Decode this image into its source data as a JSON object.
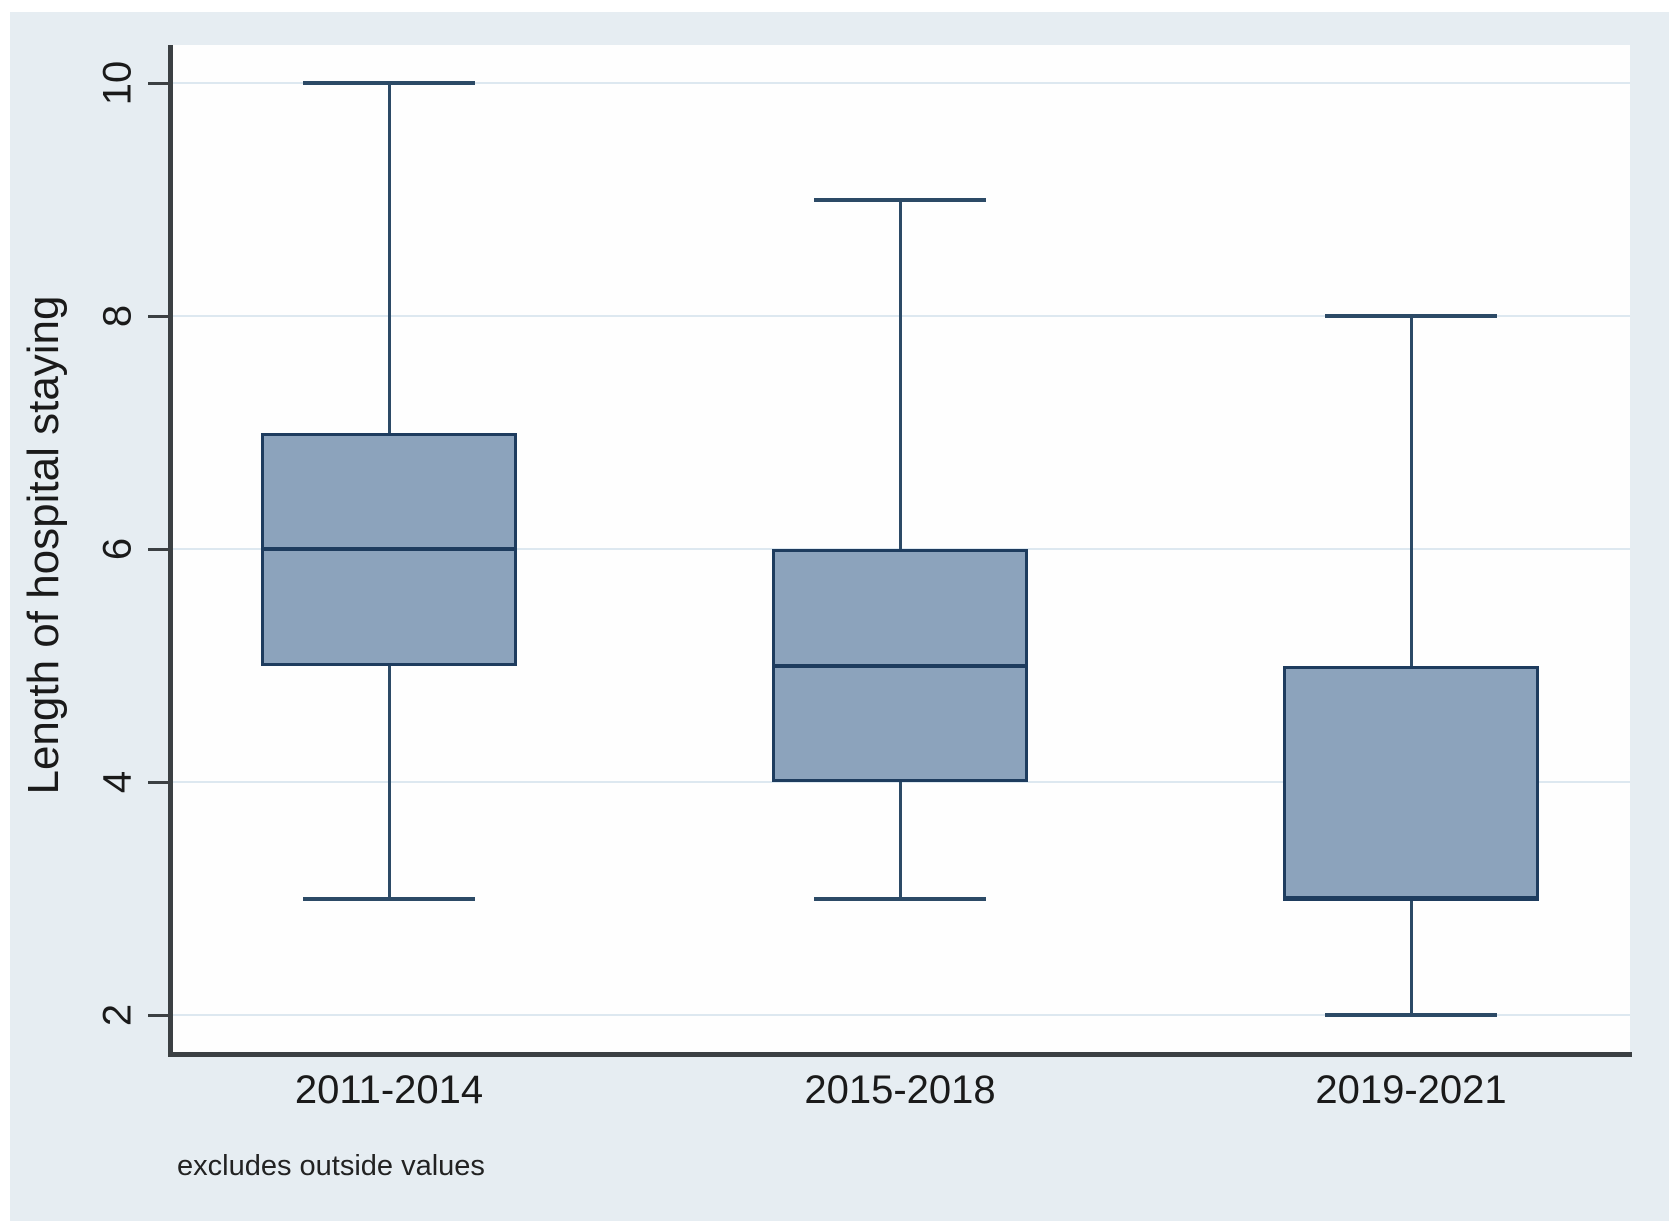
{
  "figure": {
    "note": "excludes outside values",
    "y_axis": {
      "title": "Length of hospital staying",
      "tick_labels": [
        "2",
        "4",
        "6",
        "8",
        "10"
      ]
    },
    "x_axis": {
      "category_labels": [
        "2011-2014",
        "2015-2018",
        "2019-2021"
      ]
    },
    "colors": {
      "figure_bg": "#e6edf2",
      "plot_bg": "#fefefe",
      "axis": "#3b4043",
      "gridline": "#dde8f0",
      "box_fill": "#8ca3bc",
      "box_border": "#1e3c5e",
      "whisker": "#2c4a66",
      "text": "#1a1a1a"
    }
  },
  "chart_data": {
    "type": "box",
    "title": "",
    "xlabel": "",
    "ylabel": "Length of hospital staying",
    "categories": [
      "2011-2014",
      "2015-2018",
      "2019-2021"
    ],
    "series": [
      {
        "name": "2011-2014",
        "whisker_low": 3,
        "q1": 5,
        "median": 6,
        "q3": 7,
        "whisker_high": 10
      },
      {
        "name": "2015-2018",
        "whisker_low": 3,
        "q1": 4,
        "median": 5,
        "q3": 6,
        "whisker_high": 9
      },
      {
        "name": "2019-2021",
        "whisker_low": 2,
        "q1": 3,
        "median": 3,
        "q3": 5,
        "whisker_high": 8
      }
    ],
    "ylim": [
      2,
      10
    ],
    "yticks": [
      2,
      4,
      6,
      8,
      10
    ],
    "grid": "horizontal-light",
    "legend": "none",
    "note": "excludes outside values"
  }
}
